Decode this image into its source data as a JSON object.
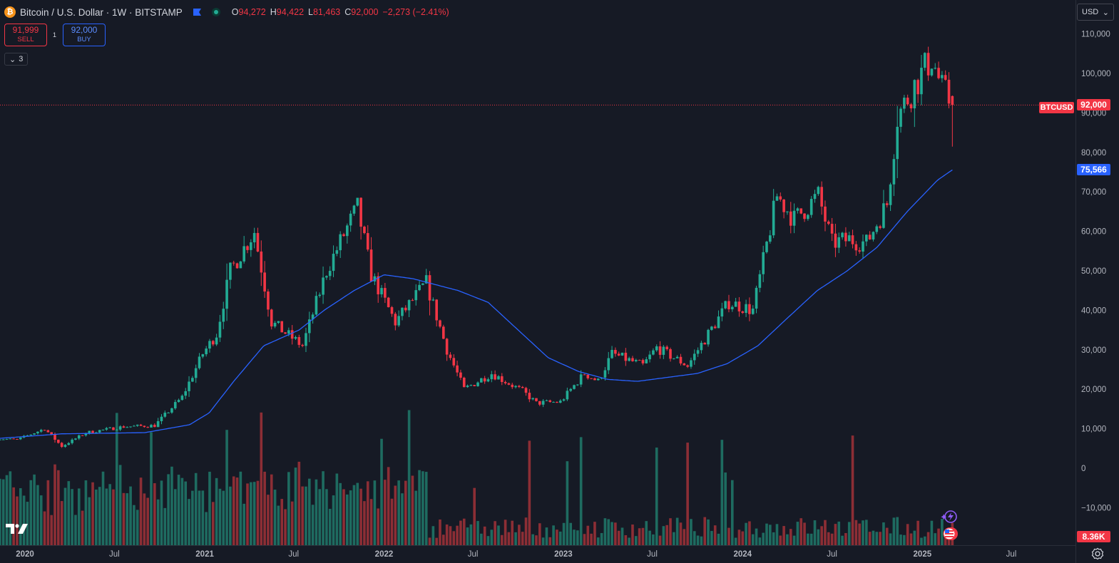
{
  "header": {
    "symbol_title": "Bitcoin / U.S. Dollar · 1W · BITSTAMP",
    "ohlc": [
      {
        "key": "O",
        "value": "94,272"
      },
      {
        "key": "H",
        "value": "94,422"
      },
      {
        "key": "L",
        "value": "81,463"
      },
      {
        "key": "C",
        "value": "92,000"
      }
    ],
    "change": "−2,273 (−2.41%)"
  },
  "trade": {
    "sell_price": "91,999",
    "sell_label": "SELL",
    "buy_price": "92,000",
    "buy_label": "BUY",
    "spread": "1"
  },
  "indicators": {
    "count": "3"
  },
  "price_axis": {
    "currency": "USD",
    "last_price_label": "92,000",
    "symbol_label": "BTCUSD",
    "ma_label": "75,566",
    "volume_label": "8.36K"
  },
  "colors": {
    "up": "#22ab94",
    "down": "#f23645",
    "ma": "#2962ff",
    "up_vol": "#1e6b60",
    "down_vol": "#8c2e35",
    "background": "#161a25",
    "grid_text": "#b2b5be"
  },
  "icons": {
    "brand": "tradingview-logo",
    "settings": "gear-icon",
    "symbol": "bitcoin-icon"
  },
  "chart_data": {
    "type": "candlestick",
    "interval": "1W",
    "ylim": [
      -15000,
      115000
    ],
    "y_ticks": [
      110000,
      100000,
      90000,
      80000,
      70000,
      60000,
      50000,
      40000,
      30000,
      20000,
      10000,
      0,
      -10000
    ],
    "x_ticks": [
      {
        "date": "2020-01-01",
        "label": "2020"
      },
      {
        "date": "2020-07-01",
        "label": "Jul"
      },
      {
        "date": "2021-01-01",
        "label": "2021"
      },
      {
        "date": "2021-07-01",
        "label": "Jul"
      },
      {
        "date": "2022-01-01",
        "label": "2022"
      },
      {
        "date": "2022-07-01",
        "label": "Jul"
      },
      {
        "date": "2023-01-01",
        "label": "2023"
      },
      {
        "date": "2023-07-01",
        "label": "Jul"
      },
      {
        "date": "2024-01-01",
        "label": "2024"
      },
      {
        "date": "2024-07-01",
        "label": "Jul"
      },
      {
        "date": "2025-01-01",
        "label": "2025"
      },
      {
        "date": "2025-07-01",
        "label": "Jul"
      }
    ],
    "last_bar": {
      "open": 94272,
      "high": 94422,
      "low": 81463,
      "close": 92000
    },
    "ma_last": 75566,
    "last_volume": "8.36K",
    "price_path": [
      {
        "date": "2019-11-04",
        "close": 7500
      },
      {
        "date": "2019-12-16",
        "close": 7200
      },
      {
        "date": "2020-02-10",
        "close": 10000
      },
      {
        "date": "2020-03-16",
        "close": 5500
      },
      {
        "date": "2020-05-04",
        "close": 9000
      },
      {
        "date": "2020-07-20",
        "close": 10500
      },
      {
        "date": "2020-09-21",
        "close": 10800
      },
      {
        "date": "2020-11-16",
        "close": 18000
      },
      {
        "date": "2020-12-28",
        "close": 29000
      },
      {
        "date": "2021-01-25",
        "close": 34000
      },
      {
        "date": "2021-02-22",
        "close": 50000
      },
      {
        "date": "2021-04-12",
        "close": 60000
      },
      {
        "date": "2021-05-17",
        "close": 37000
      },
      {
        "date": "2021-07-19",
        "close": 31000
      },
      {
        "date": "2021-09-06",
        "close": 50000
      },
      {
        "date": "2021-10-18",
        "close": 61000
      },
      {
        "date": "2021-11-08",
        "close": 66000
      },
      {
        "date": "2021-12-06",
        "close": 49000
      },
      {
        "date": "2022-01-24",
        "close": 37000
      },
      {
        "date": "2022-03-28",
        "close": 47000
      },
      {
        "date": "2022-05-09",
        "close": 30000
      },
      {
        "date": "2022-06-13",
        "close": 20000
      },
      {
        "date": "2022-08-08",
        "close": 24000
      },
      {
        "date": "2022-10-10",
        "close": 19500
      },
      {
        "date": "2022-11-07",
        "close": 16500
      },
      {
        "date": "2022-12-26",
        "close": 16800
      },
      {
        "date": "2023-02-13",
        "close": 24000
      },
      {
        "date": "2023-03-13",
        "close": 22000
      },
      {
        "date": "2023-04-10",
        "close": 29000
      },
      {
        "date": "2023-06-12",
        "close": 26000
      },
      {
        "date": "2023-07-10",
        "close": 30500
      },
      {
        "date": "2023-09-11",
        "close": 26000
      },
      {
        "date": "2023-10-23",
        "close": 34000
      },
      {
        "date": "2023-12-04",
        "close": 42000
      },
      {
        "date": "2024-01-22",
        "close": 40000
      },
      {
        "date": "2024-03-11",
        "close": 69000
      },
      {
        "date": "2024-04-15",
        "close": 63000
      },
      {
        "date": "2024-06-03",
        "close": 69000
      },
      {
        "date": "2024-07-01",
        "close": 57000
      },
      {
        "date": "2024-08-05",
        "close": 58000
      },
      {
        "date": "2024-09-09",
        "close": 57000
      },
      {
        "date": "2024-10-21",
        "close": 67000
      },
      {
        "date": "2024-11-11",
        "close": 89000
      },
      {
        "date": "2024-12-16",
        "close": 97000
      },
      {
        "date": "2025-01-20",
        "close": 104000
      },
      {
        "date": "2025-02-10",
        "close": 96000
      },
      {
        "date": "2025-03-03",
        "close": 92000
      }
    ],
    "ma_path": [
      {
        "date": "2019-11-04",
        "value": 7500
      },
      {
        "date": "2020-03-16",
        "value": 8700
      },
      {
        "date": "2020-09-01",
        "value": 9000
      },
      {
        "date": "2020-12-01",
        "value": 11000
      },
      {
        "date": "2021-01-10",
        "value": 14000
      },
      {
        "date": "2021-03-01",
        "value": 22000
      },
      {
        "date": "2021-05-01",
        "value": 31000
      },
      {
        "date": "2021-07-12",
        "value": 35000
      },
      {
        "date": "2021-09-01",
        "value": 40000
      },
      {
        "date": "2021-11-01",
        "value": 45000
      },
      {
        "date": "2022-01-01",
        "value": 49000
      },
      {
        "date": "2022-03-01",
        "value": 48000
      },
      {
        "date": "2022-05-01",
        "value": 46000
      },
      {
        "date": "2022-06-01",
        "value": 45000
      },
      {
        "date": "2022-08-01",
        "value": 42000
      },
      {
        "date": "2022-10-01",
        "value": 35000
      },
      {
        "date": "2022-12-01",
        "value": 28000
      },
      {
        "date": "2023-02-01",
        "value": 24500
      },
      {
        "date": "2023-04-01",
        "value": 22500
      },
      {
        "date": "2023-06-01",
        "value": 22000
      },
      {
        "date": "2023-08-01",
        "value": 23000
      },
      {
        "date": "2023-10-01",
        "value": 24000
      },
      {
        "date": "2023-12-01",
        "value": 26500
      },
      {
        "date": "2024-02-01",
        "value": 31000
      },
      {
        "date": "2024-04-01",
        "value": 38000
      },
      {
        "date": "2024-06-01",
        "value": 45000
      },
      {
        "date": "2024-08-01",
        "value": 50000
      },
      {
        "date": "2024-10-01",
        "value": 56000
      },
      {
        "date": "2024-12-01",
        "value": 65000
      },
      {
        "date": "2025-02-01",
        "value": 73000
      },
      {
        "date": "2025-03-03",
        "value": 75566
      }
    ]
  }
}
